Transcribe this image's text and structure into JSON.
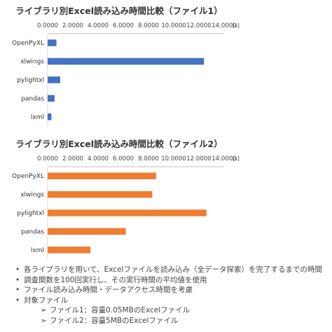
{
  "chart_data": [
    {
      "type": "bar",
      "orientation": "horizontal",
      "title": "ライブラリ別Excel読み込み時間比較（ファイル1）",
      "unit": "[s]",
      "categories": [
        "OpenPyXL",
        "xlwings",
        "pylightxl",
        "pandas",
        "lxml"
      ],
      "values": [
        0.7,
        12.4,
        1.0,
        0.55,
        0.3
      ],
      "xlim": [
        0,
        14
      ],
      "ticks": [
        "0.0000",
        "2.0000",
        "4.0000",
        "6.0000",
        "8.0000",
        "10.0000",
        "12.0000",
        "14.0000"
      ],
      "color": "#4472c4",
      "grid": false,
      "legend": "none"
    },
    {
      "type": "bar",
      "orientation": "horizontal",
      "title": "ライブラリ別Excel読み込み時間比較（ファイル2）",
      "unit": "[s]",
      "categories": [
        "OpenPyXL",
        "xlwings",
        "pylightxl",
        "pandas",
        "lxml"
      ],
      "values": [
        8.6,
        8.3,
        12.6,
        6.2,
        3.4
      ],
      "xlim": [
        0,
        14
      ],
      "ticks": [
        "0.0000",
        "2.0000",
        "4.0000",
        "6.0000",
        "8.0000",
        "10.0000",
        "12.0000",
        "14.0000"
      ],
      "color": "#ed7d31",
      "grid": false,
      "legend": "none"
    }
  ],
  "notes": {
    "bullet_symbol": "•",
    "arrow_symbol": "➢",
    "items": [
      "各ライブラリを用いて、Excelファイルを読み込み（全データ探索）を完了するまでの時間",
      "調査関数を100回実行し、その実行時間の平均値を使用",
      "ファイル読み込み時間・データアクセス時間を考慮",
      "対象ファイル"
    ],
    "sub_items": [
      "ファイル1：容量0.05MBのExcelファイル",
      "ファイル2：容量5MBのExcelファイル"
    ]
  }
}
